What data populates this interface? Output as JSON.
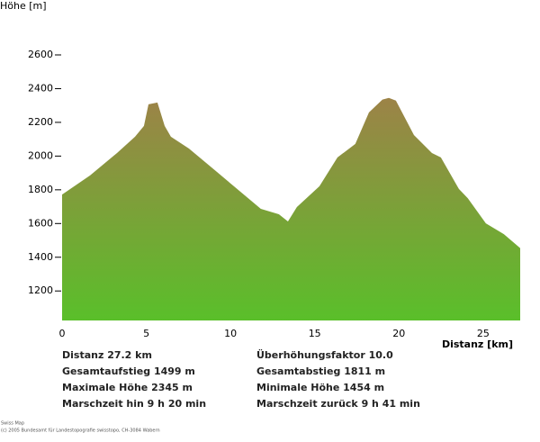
{
  "chart_data": {
    "type": "area",
    "y_label": "Höhe [m]",
    "x_label": "Distanz [km]",
    "x": [
      0,
      1.66,
      3.26,
      4.33,
      4.86,
      5.13,
      5.66,
      6.09,
      6.46,
      7.53,
      9.13,
      10.2,
      11.8,
      12.87,
      13.41,
      13.94,
      15.28,
      16.35,
      17.41,
      18.22,
      19.02,
      19.4,
      19.82,
      20.89,
      21.96,
      22.49,
      23.56,
      24.09,
      25.16,
      26.23,
      27.2
    ],
    "y": [
      1772,
      1885,
      2018,
      2115,
      2179,
      2307,
      2318,
      2179,
      2115,
      2045,
      1911,
      1821,
      1687,
      1655,
      1612,
      1698,
      1821,
      1992,
      2072,
      2259,
      2335,
      2345,
      2329,
      2125,
      2018,
      1992,
      1805,
      1750,
      1601,
      1537,
      1454
    ],
    "xlim": [
      0,
      27.2
    ],
    "xticks": [
      0,
      5,
      10,
      15,
      20,
      25
    ],
    "ylim": [
      1025,
      2600
    ],
    "yticks": [
      1200,
      1400,
      1600,
      1800,
      2000,
      2200,
      2400,
      2600
    ],
    "colors": [
      "#9c8347",
      "#5abf2a"
    ],
    "info": [
      "Distanz  27.2 km",
      "Gesamtaufstieg   1499 m",
      "Maximale Höhe   2345 m",
      "Marschzeit hin   9 h 20 min",
      "Überhöhungsfaktor 10.0",
      "Gesamtabstieg   1811 m",
      "Minimale Höhe   1454 m",
      "Marschzeit zurück   9 h 41 min"
    ],
    "footer": [
      "Swiss Map",
      "(c) 2005 Bundesamt für Landestopografie swisstopo, CH-3084 Wabern"
    ]
  }
}
